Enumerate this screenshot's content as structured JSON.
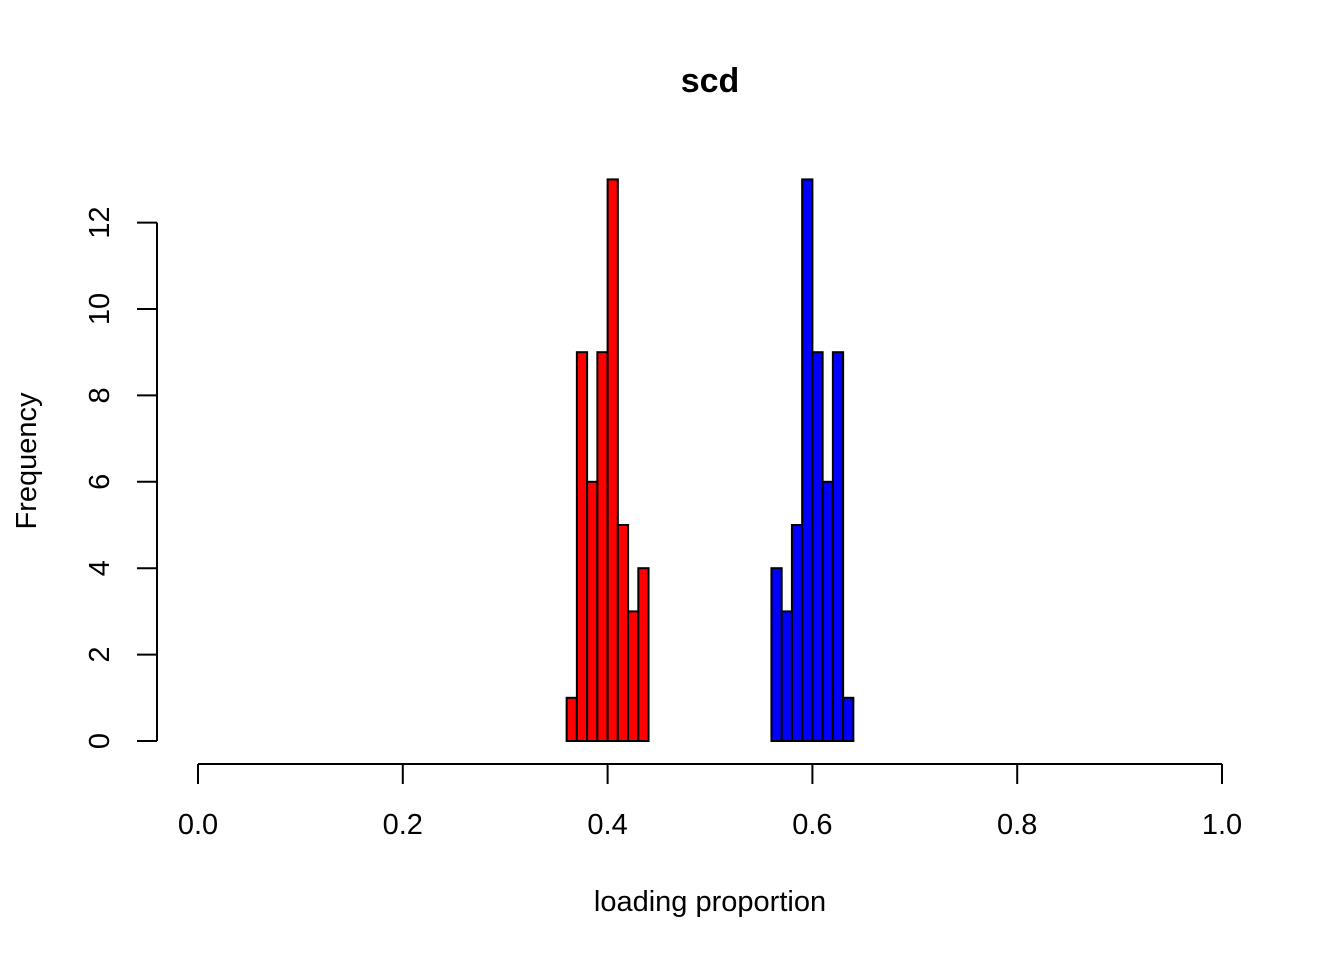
{
  "chart_data": {
    "type": "bar",
    "title": "scd",
    "xlabel": "loading proportion",
    "ylabel": "Frequency",
    "xlim": [
      0,
      1
    ],
    "ylim": [
      0,
      13
    ],
    "x_ticks": [
      "0.0",
      "0.2",
      "0.4",
      "0.6",
      "0.8",
      "1.0"
    ],
    "x_tick_values": [
      0,
      0.2,
      0.4,
      0.6,
      0.8,
      1.0
    ],
    "y_ticks": [
      "0",
      "2",
      "4",
      "6",
      "8",
      "10",
      "12"
    ],
    "y_tick_values": [
      0,
      2,
      4,
      6,
      8,
      10,
      12
    ],
    "grid": false,
    "series": [
      {
        "color": "#ff0000",
        "bins": [
          {
            "x0": 0.36,
            "x1": 0.37,
            "count": 1
          },
          {
            "x0": 0.37,
            "x1": 0.38,
            "count": 9
          },
          {
            "x0": 0.38,
            "x1": 0.39,
            "count": 6
          },
          {
            "x0": 0.39,
            "x1": 0.4,
            "count": 9
          },
          {
            "x0": 0.4,
            "x1": 0.41,
            "count": 13
          },
          {
            "x0": 0.41,
            "x1": 0.42,
            "count": 5
          },
          {
            "x0": 0.42,
            "x1": 0.43,
            "count": 3
          },
          {
            "x0": 0.43,
            "x1": 0.44,
            "count": 4
          }
        ]
      },
      {
        "color": "#0000ff",
        "bins": [
          {
            "x0": 0.56,
            "x1": 0.57,
            "count": 4
          },
          {
            "x0": 0.57,
            "x1": 0.58,
            "count": 3
          },
          {
            "x0": 0.58,
            "x1": 0.59,
            "count": 5
          },
          {
            "x0": 0.59,
            "x1": 0.6,
            "count": 13
          },
          {
            "x0": 0.6,
            "x1": 0.61,
            "count": 9
          },
          {
            "x0": 0.61,
            "x1": 0.62,
            "count": 6
          },
          {
            "x0": 0.62,
            "x1": 0.63,
            "count": 9
          },
          {
            "x0": 0.63,
            "x1": 0.64,
            "count": 1
          }
        ]
      }
    ]
  }
}
